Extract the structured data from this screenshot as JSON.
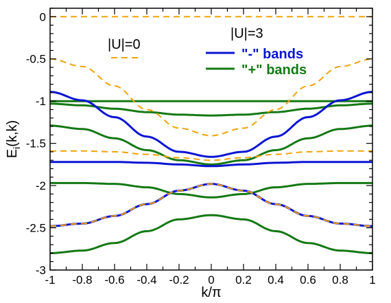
{
  "chart_data": {
    "type": "line",
    "xlabel": "k/π",
    "ylabel": "E_i(k,k)",
    "ylabel_main": "E",
    "ylabel_sub": "i",
    "ylabel_rest": "(k,k)",
    "xlim": [
      -1,
      1
    ],
    "ylim": [
      -3,
      0.1
    ],
    "xticks": [
      -1,
      -0.8,
      -0.6,
      -0.4,
      -0.2,
      0,
      0.2,
      0.4,
      0.6,
      0.8,
      1
    ],
    "xtick_labels": [
      "-1",
      "-0.8",
      "-0.6",
      "-0.4",
      "-0.2",
      "0",
      "0.2",
      "0.4",
      "0.6",
      "0.8",
      "1"
    ],
    "yticks": [
      -3,
      -2.5,
      -2,
      -1.5,
      -1,
      -0.5,
      0
    ],
    "ytick_labels": [
      "-3",
      "-2.5",
      "-2",
      "-1.5",
      "-1",
      "-0.5",
      "0"
    ],
    "grid": false,
    "legend": {
      "placement": "top",
      "group_u0_title": "|U|=0",
      "group_u3_title": "|U|=3",
      "minus_label": "\"-\" bands",
      "plus_label": "\"+\" bands"
    },
    "colors": {
      "u0": "#f0a30a",
      "minus": "#0a14d2",
      "plus": "#147814"
    },
    "series": [
      {
        "group": "u0",
        "dashed": true,
        "x": [
          -1,
          1
        ],
        "y": [
          0,
          0
        ]
      },
      {
        "group": "u0",
        "dashed": true,
        "x": [
          -1,
          -0.8,
          -0.6,
          -0.4,
          -0.2,
          0,
          0.2,
          0.4,
          0.6,
          0.8,
          1
        ],
        "y": [
          -0.5,
          -0.59,
          -0.82,
          -1.1,
          -1.32,
          -1.41,
          -1.32,
          -1.1,
          -0.82,
          -0.59,
          -0.5
        ]
      },
      {
        "group": "u0",
        "dashed": true,
        "x": [
          -1,
          -0.8,
          -0.6,
          -0.4,
          -0.2,
          0,
          0.2,
          0.4,
          0.6,
          0.8,
          1
        ],
        "y": [
          -1.59,
          -1.59,
          -1.6,
          -1.63,
          -1.67,
          -1.7,
          -1.67,
          -1.63,
          -1.6,
          -1.59,
          -1.59
        ]
      },
      {
        "group": "u0",
        "dashed": true,
        "x": [
          -1,
          -0.8,
          -0.6,
          -0.4,
          -0.2,
          0,
          0.2,
          0.4,
          0.6,
          0.8,
          1
        ],
        "y": [
          -2.48,
          -2.45,
          -2.36,
          -2.22,
          -2.06,
          -1.98,
          -2.06,
          -2.22,
          -2.36,
          -2.45,
          -2.48
        ]
      },
      {
        "group": "minus",
        "dashed": false,
        "x": [
          -1,
          -0.8,
          -0.6,
          -0.4,
          -0.2,
          0,
          0.2,
          0.4,
          0.6,
          0.8,
          1
        ],
        "y": [
          -0.89,
          -0.99,
          -1.19,
          -1.42,
          -1.6,
          -1.66,
          -1.6,
          -1.42,
          -1.19,
          -0.99,
          -0.89
        ]
      },
      {
        "group": "minus",
        "dashed": false,
        "x": [
          -1,
          -0.8,
          -0.6,
          -0.4,
          -0.2,
          0,
          0.2,
          0.4,
          0.6,
          0.8,
          1
        ],
        "y": [
          -1.72,
          -1.72,
          -1.72,
          -1.73,
          -1.75,
          -1.77,
          -1.75,
          -1.73,
          -1.72,
          -1.72,
          -1.72
        ]
      },
      {
        "group": "minus",
        "dashed": false,
        "x": [
          -1,
          -0.8,
          -0.6,
          -0.4,
          -0.2,
          0,
          0.2,
          0.4,
          0.6,
          0.8,
          1
        ],
        "y": [
          -2.48,
          -2.45,
          -2.36,
          -2.22,
          -2.06,
          -1.98,
          -2.06,
          -2.22,
          -2.36,
          -2.45,
          -2.48
        ]
      },
      {
        "group": "plus",
        "dashed": false,
        "x": [
          -1,
          -0.8,
          -0.6,
          -0.4,
          -0.2,
          0,
          0.2,
          0.4,
          0.6,
          0.8,
          1
        ],
        "y": [
          -1,
          -1,
          -1,
          -1,
          -1,
          -1,
          -1,
          -1,
          -1,
          -1,
          -1
        ]
      },
      {
        "group": "plus",
        "dashed": false,
        "x": [
          -1,
          -0.8,
          -0.6,
          -0.4,
          -0.2,
          0,
          0.2,
          0.4,
          0.6,
          0.8,
          1
        ],
        "y": [
          -1.03,
          -1.05,
          -1.09,
          -1.13,
          -1.16,
          -1.17,
          -1.16,
          -1.13,
          -1.09,
          -1.05,
          -1.03
        ]
      },
      {
        "group": "plus",
        "dashed": false,
        "x": [
          -1,
          -0.8,
          -0.6,
          -0.4,
          -0.2,
          0,
          0.2,
          0.4,
          0.6,
          0.8,
          1
        ],
        "y": [
          -1.29,
          -1.33,
          -1.44,
          -1.58,
          -1.7,
          -1.75,
          -1.7,
          -1.58,
          -1.44,
          -1.33,
          -1.29
        ]
      },
      {
        "group": "plus",
        "dashed": false,
        "x": [
          -1,
          -0.8,
          -0.6,
          -0.4,
          -0.2,
          0,
          0.2,
          0.4,
          0.6,
          0.8,
          1
        ],
        "y": [
          -1.97,
          -1.97,
          -1.98,
          -2.02,
          -2.1,
          -2.14,
          -2.1,
          -2.02,
          -1.98,
          -1.97,
          -1.97
        ]
      },
      {
        "group": "plus",
        "dashed": false,
        "x": [
          -1,
          -0.8,
          -0.6,
          -0.4,
          -0.2,
          0,
          0.2,
          0.4,
          0.6,
          0.8,
          1
        ],
        "y": [
          -2.8,
          -2.77,
          -2.68,
          -2.54,
          -2.4,
          -2.35,
          -2.4,
          -2.54,
          -2.68,
          -2.77,
          -2.8
        ]
      }
    ]
  }
}
